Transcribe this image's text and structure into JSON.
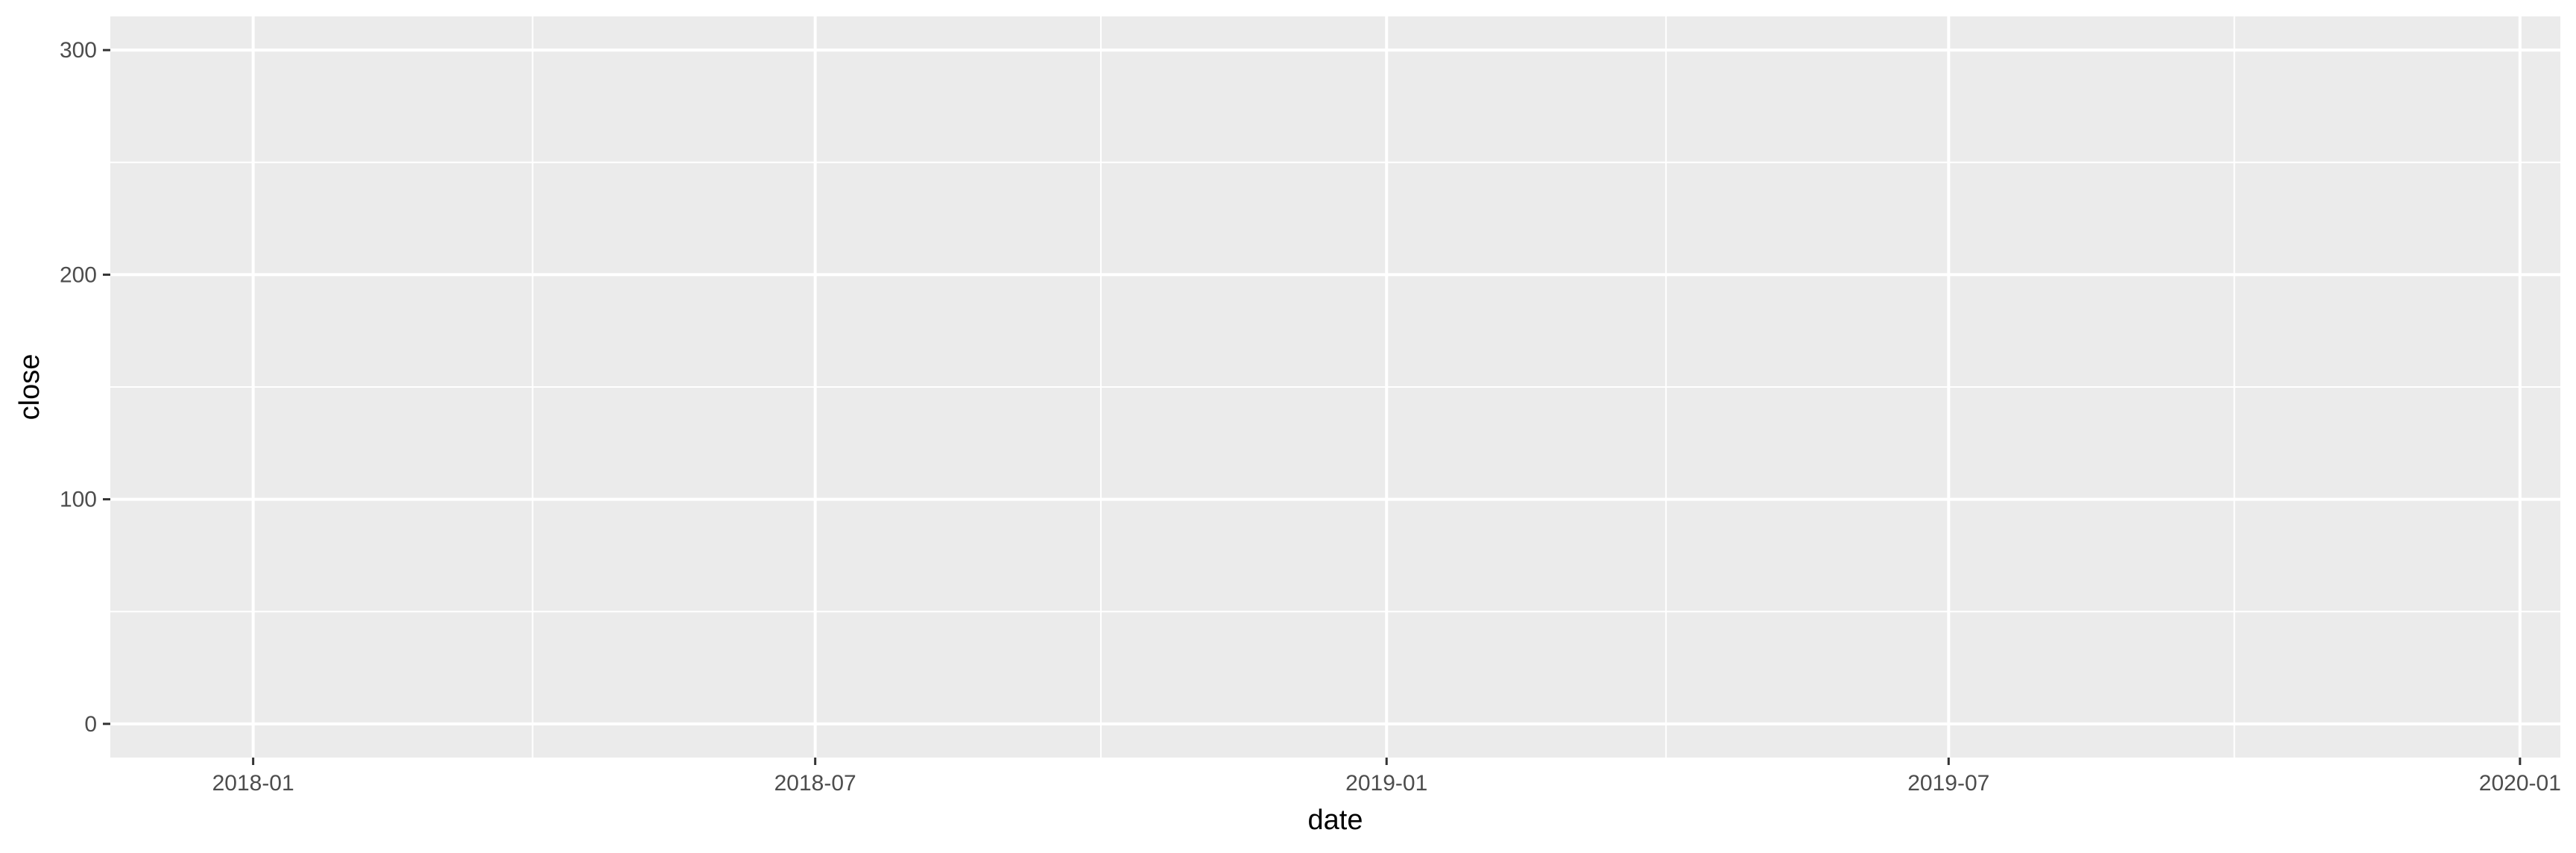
{
  "chart_data": {
    "type": "line",
    "title": "",
    "xlabel": "date",
    "ylabel": "close",
    "x_scale": "date",
    "xlim": [
      "2017-11-16",
      "2020-01-14"
    ],
    "ylim": [
      -15,
      315
    ],
    "x_ticks": [
      {
        "value": "2018-01-01",
        "label": "2018-01"
      },
      {
        "value": "2018-07-01",
        "label": "2018-07"
      },
      {
        "value": "2019-01-01",
        "label": "2019-01"
      },
      {
        "value": "2019-07-01",
        "label": "2019-07"
      },
      {
        "value": "2020-01-01",
        "label": "2020-01"
      }
    ],
    "x_minor_ticks": [
      "2018-04-01",
      "2018-10-01",
      "2019-04-01",
      "2019-10-01"
    ],
    "y_ticks": [
      0,
      100,
      200,
      300
    ],
    "y_minor_ticks": [
      50,
      150,
      250
    ],
    "grid": true,
    "background": "#ebebeb",
    "grid_color": "#ffffff",
    "series": []
  }
}
